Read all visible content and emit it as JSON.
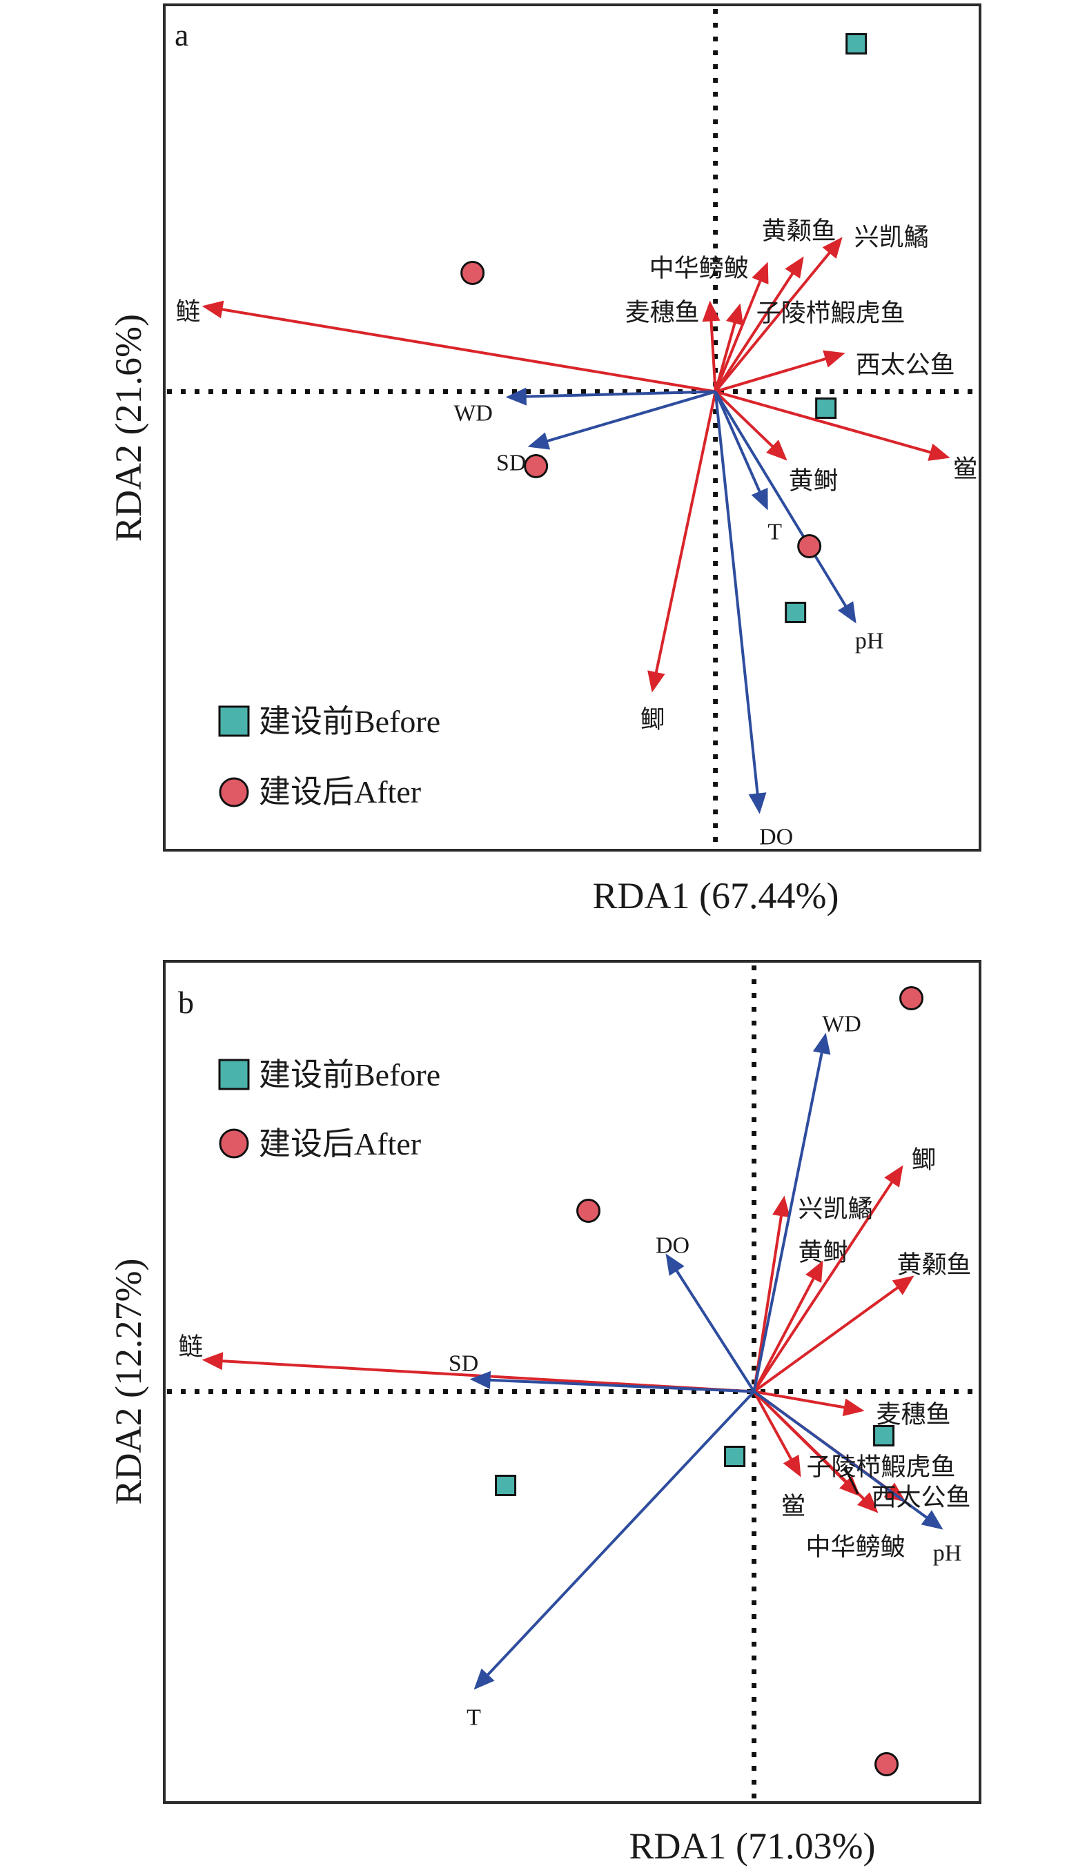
{
  "figure": {
    "legend": {
      "before_label": "建设前Before",
      "after_label": "建设后After"
    },
    "colors": {
      "species_arrow": "#D9252B",
      "env_arrow": "#2E4D9E",
      "before_marker": "#4AB3AC",
      "after_marker": "#E05A66",
      "frame": "#2b2b2b"
    }
  },
  "chart_data": [
    {
      "type": "scatter",
      "subtype": "rda-biplot",
      "panel": "a",
      "xlabel": "RDA1 (67.44%)",
      "ylabel": "RDA2 (21.6%)",
      "xlim": [
        -2.0,
        0.96
      ],
      "ylim": [
        -1.66,
        1.4
      ],
      "grid": false,
      "zero_lines": true,
      "legend_position": "bottom-left",
      "species_arrows": [
        {
          "name": "鲢",
          "x": -1.86,
          "y": 0.31
        },
        {
          "name": "麦穗鱼",
          "x": -0.02,
          "y": 0.33
        },
        {
          "name": "子陵栉鰕虎鱼",
          "x": 0.09,
          "y": 0.32
        },
        {
          "name": "中华鳑鲏",
          "x": 0.19,
          "y": 0.47
        },
        {
          "name": "黄颡鱼",
          "x": 0.32,
          "y": 0.49
        },
        {
          "name": "兴凯鱊",
          "x": 0.46,
          "y": 0.56
        },
        {
          "name": "西太公鱼",
          "x": 0.47,
          "y": 0.14
        },
        {
          "name": "黄鲥",
          "x": 0.26,
          "y": -0.25
        },
        {
          "name": "鲎",
          "x": 0.85,
          "y": -0.24
        },
        {
          "name": "鲫",
          "x": -0.23,
          "y": -1.09
        }
      ],
      "env_arrows": [
        {
          "name": "WD",
          "x": -0.76,
          "y": -0.02
        },
        {
          "name": "SD",
          "x": -0.68,
          "y": -0.2
        },
        {
          "name": "T",
          "x": 0.19,
          "y": -0.43
        },
        {
          "name": "pH",
          "x": 0.51,
          "y": -0.84
        },
        {
          "name": "DO",
          "x": 0.16,
          "y": -1.53
        }
      ],
      "sites": [
        {
          "group": "before",
          "x": 0.51,
          "y": 1.26
        },
        {
          "group": "before",
          "x": 0.4,
          "y": -0.06
        },
        {
          "group": "before",
          "x": 0.29,
          "y": -0.8
        },
        {
          "group": "after",
          "x": -0.88,
          "y": 0.43
        },
        {
          "group": "after",
          "x": -0.65,
          "y": -0.27
        },
        {
          "group": "after",
          "x": 0.34,
          "y": -0.56
        }
      ]
    },
    {
      "type": "scatter",
      "subtype": "rda-biplot",
      "panel": "b",
      "xlabel": "RDA1 (71.03%)",
      "ylabel": "RDA2 (12.27%)",
      "xlim": [
        -2.14,
        0.82
      ],
      "ylim": [
        -1.49,
        1.56
      ],
      "grid": false,
      "zero_lines": true,
      "legend_position": "top-left",
      "species_arrows": [
        {
          "name": "鲢",
          "x": -2.0,
          "y": 0.115
        },
        {
          "name": "兴凯鱊",
          "x": 0.11,
          "y": 0.71
        },
        {
          "name": "鲫",
          "x": 0.54,
          "y": 0.82
        },
        {
          "name": "黄鲥",
          "x": 0.25,
          "y": 0.475
        },
        {
          "name": "黄颡鱼",
          "x": 0.58,
          "y": 0.42
        },
        {
          "name": "麦穗鱼",
          "x": 0.4,
          "y": -0.07
        },
        {
          "name": "子陵栉鰕虎鱼",
          "x": 0.385,
          "y": -0.38
        },
        {
          "name": "鲎",
          "x": 0.17,
          "y": -0.31
        },
        {
          "name": "中华鳑鲏",
          "x": 0.45,
          "y": -0.44
        },
        {
          "name": "西太公鱼",
          "x": 0.55,
          "y": -0.4
        }
      ],
      "env_arrows": [
        {
          "name": "WD",
          "x": 0.26,
          "y": 1.3
        },
        {
          "name": "DO",
          "x": -0.32,
          "y": 0.5
        },
        {
          "name": "SD",
          "x": -1.03,
          "y": 0.045
        },
        {
          "name": "T",
          "x": -1.015,
          "y": -1.08
        },
        {
          "name": "pH",
          "x": 0.685,
          "y": -0.5
        }
      ],
      "sites": [
        {
          "group": "before",
          "x": 0.47,
          "y": -0.16
        },
        {
          "group": "before",
          "x": -0.07,
          "y": -0.235
        },
        {
          "group": "before",
          "x": -0.9,
          "y": -0.34
        },
        {
          "group": "after",
          "x": 0.57,
          "y": 1.425
        },
        {
          "group": "after",
          "x": -0.6,
          "y": 0.655
        },
        {
          "group": "after",
          "x": 0.48,
          "y": -1.35
        }
      ]
    }
  ]
}
